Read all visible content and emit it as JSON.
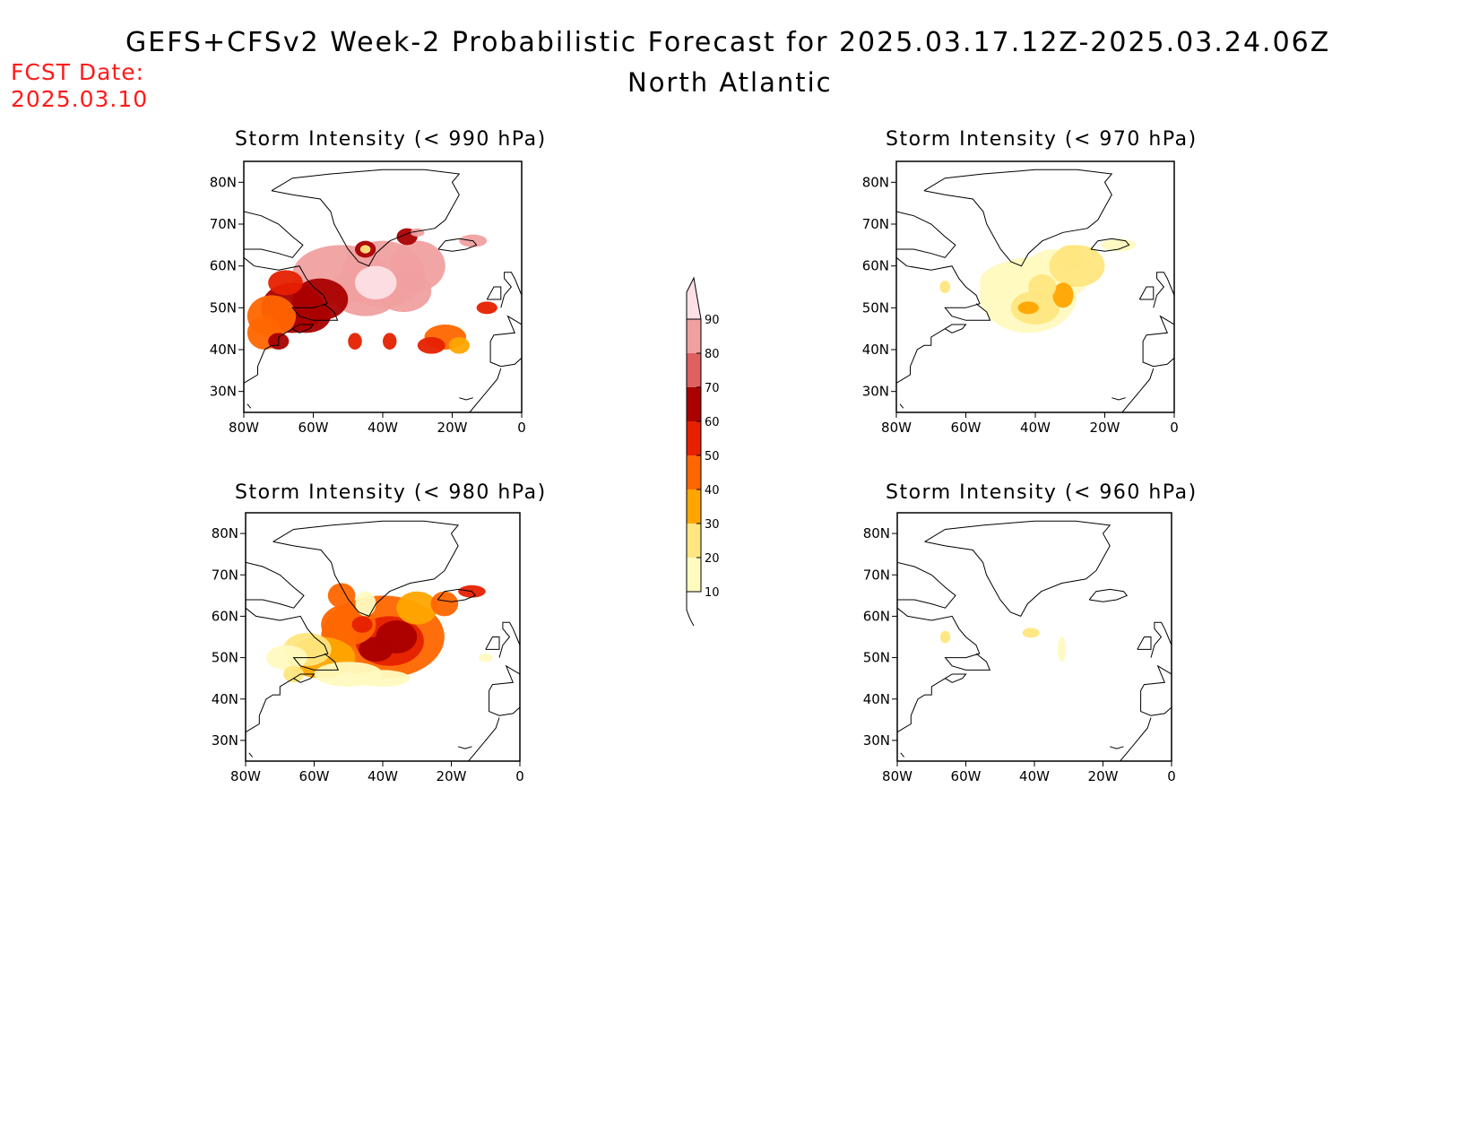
{
  "header": {
    "title": "GEFS+CFSv2 Week-2 Probabilistic Forecast for 2025.03.17.12Z-2025.03.24.06Z",
    "region": "North Atlantic",
    "fcst_label": "FCST Date:",
    "fcst_date": "2025.03.10"
  },
  "panels": [
    {
      "id": "p990",
      "title": "Storm Intensity (< 990 hPa)"
    },
    {
      "id": "p970",
      "title": "Storm Intensity (< 970 hPa)"
    },
    {
      "id": "p980",
      "title": "Storm Intensity (< 980 hPa)"
    },
    {
      "id": "p960",
      "title": "Storm Intensity (< 960 hPa)"
    }
  ],
  "axes": {
    "lon_ticks": [
      "80W",
      "60W",
      "40W",
      "20W",
      "0"
    ],
    "lat_ticks": [
      "80N",
      "70N",
      "60N",
      "50N",
      "40N",
      "30N"
    ],
    "lon_range": [
      -80,
      0
    ],
    "lat_range": [
      25,
      85
    ]
  },
  "colorbar": {
    "levels": [
      "10",
      "20",
      "30",
      "40",
      "50",
      "60",
      "70",
      "80",
      "90"
    ],
    "colors": [
      "#fffac0",
      "#ffe680",
      "#ffa500",
      "#ff6600",
      "#e62000",
      "#aa0000",
      "#e06060",
      "#f0a0a0",
      "#fce0e6"
    ]
  }
}
